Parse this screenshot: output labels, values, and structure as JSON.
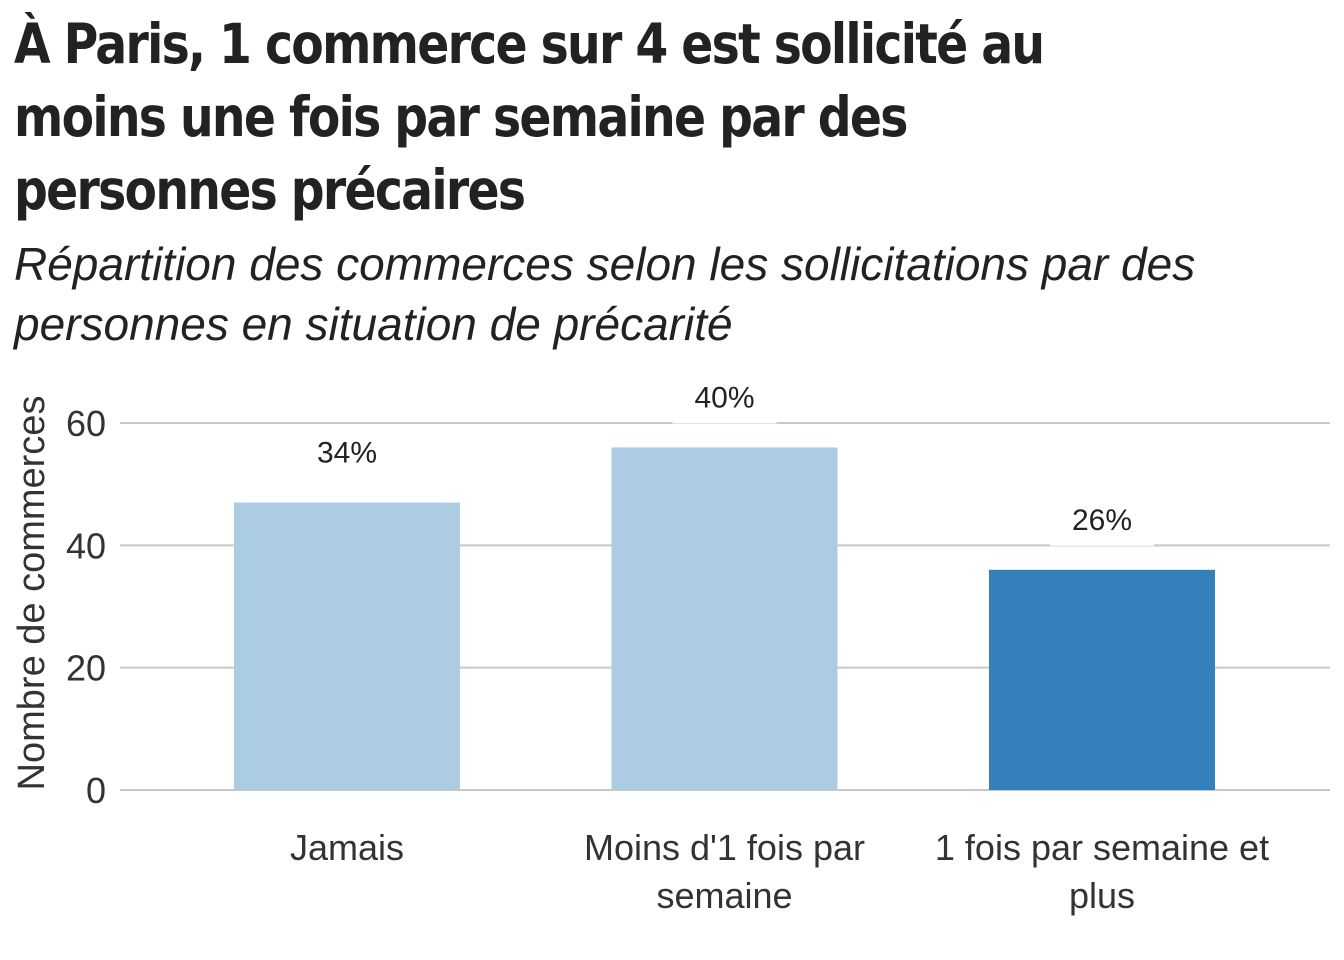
{
  "chart_data": {
    "type": "bar",
    "title": "À Paris, 1 commerce sur 4 est sollicité au moins une fois par semaine par des personnes précaires",
    "subtitle": "Répartition des commerces selon les sollicitations par des personnes en situation de précarité",
    "xlabel": "",
    "ylabel": "Nombre de commerces",
    "categories": [
      [
        "Jamais"
      ],
      [
        "Moins d'1 fois par",
        "semaine"
      ],
      [
        "1 fois par semaine et",
        "plus"
      ]
    ],
    "values": [
      47,
      56,
      36
    ],
    "data_labels": [
      "34%",
      "40%",
      "26%"
    ],
    "colors": [
      "#abcce3",
      "#abcce3",
      "#3380bb"
    ],
    "ylim": [
      0,
      60
    ],
    "yticks": [
      0,
      20,
      40,
      60
    ],
    "grid": true,
    "legend": "none"
  }
}
